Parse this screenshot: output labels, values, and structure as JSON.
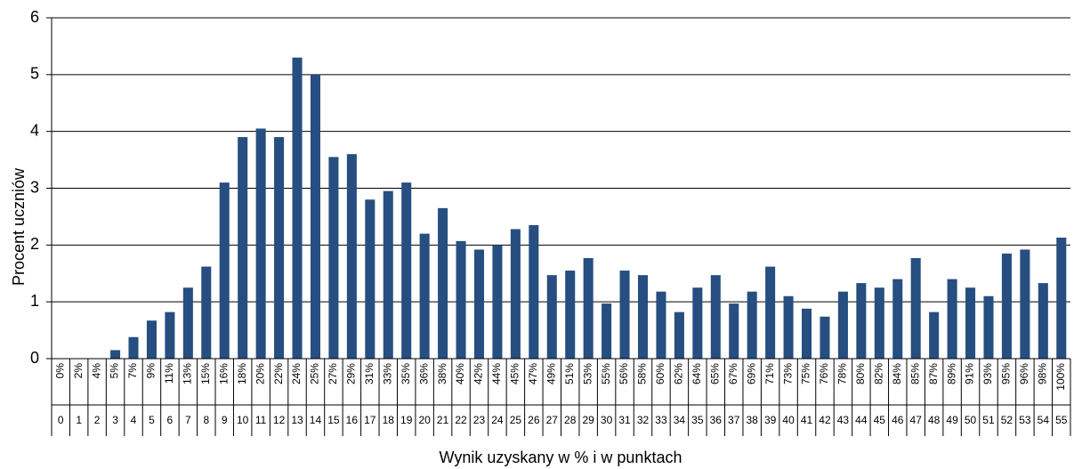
{
  "chart_data": {
    "type": "bar",
    "y_label": "Procent uczniów",
    "x_label": "Wynik uzyskany w % i w punktach",
    "categories": [
      "0%",
      "2%",
      "4%",
      "5%",
      "7%",
      "9%",
      "11%",
      "13%",
      "15%",
      "16%",
      "18%",
      "20%",
      "22%",
      "24%",
      "25%",
      "27%",
      "29%",
      "31%",
      "33%",
      "35%",
      "36%",
      "38%",
      "40%",
      "42%",
      "44%",
      "45%",
      "47%",
      "49%",
      "51%",
      "53%",
      "55%",
      "56%",
      "58%",
      "60%",
      "62%",
      "64%",
      "65%",
      "67%",
      "69%",
      "71%",
      "73%",
      "75%",
      "76%",
      "78%",
      "80%",
      "82%",
      "84%",
      "85%",
      "87%",
      "89%",
      "91%",
      "93%",
      "95%",
      "96%",
      "98%",
      "100%"
    ],
    "sub_categories": [
      "0",
      "1",
      "2",
      "3",
      "4",
      "5",
      "6",
      "7",
      "8",
      "9",
      "10",
      "11",
      "12",
      "13",
      "14",
      "15",
      "16",
      "17",
      "18",
      "19",
      "20",
      "21",
      "22",
      "23",
      "24",
      "25",
      "26",
      "27",
      "28",
      "29",
      "30",
      "31",
      "32",
      "33",
      "34",
      "35",
      "36",
      "37",
      "38",
      "39",
      "40",
      "41",
      "42",
      "43",
      "44",
      "45",
      "46",
      "47",
      "48",
      "49",
      "50",
      "51",
      "52",
      "53",
      "54",
      "55"
    ],
    "values": [
      0,
      0,
      0,
      0.15,
      0.38,
      0.67,
      0.82,
      1.25,
      1.62,
      3.1,
      3.9,
      4.05,
      3.9,
      5.3,
      5.0,
      3.55,
      3.6,
      2.8,
      2.95,
      3.1,
      2.2,
      2.65,
      2.07,
      1.92,
      2.0,
      2.28,
      2.35,
      1.47,
      1.55,
      1.77,
      0.97,
      1.55,
      1.47,
      1.18,
      0.82,
      1.25,
      1.47,
      0.97,
      1.18,
      1.62,
      1.1,
      0.88,
      0.74,
      1.18,
      1.33,
      1.25,
      1.4,
      1.77,
      0.82,
      1.4,
      1.25,
      1.1,
      1.85,
      1.92,
      1.33,
      2.13
    ],
    "color": "#264e80",
    "ylim": [
      0,
      6
    ],
    "yticks": [
      0,
      1,
      2,
      3,
      4,
      5,
      6
    ],
    "grid": true
  }
}
